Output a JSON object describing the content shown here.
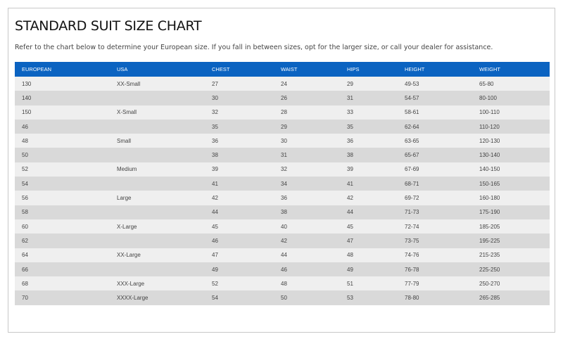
{
  "header": {
    "title": "STANDARD SUIT SIZE CHART",
    "intro": "Refer to the chart below to determine your European size. If you fall in between sizes, opt for the larger size, or call your dealer for assistance."
  },
  "table": {
    "columns": [
      "EUROPEAN",
      "USA",
      "CHEST",
      "WAIST",
      "HIPS",
      "HEIGHT",
      "WEIGHT"
    ],
    "rows": [
      [
        130,
        "XX-Small",
        27,
        24,
        29,
        "49-53",
        "65-80"
      ],
      [
        140,
        null,
        30,
        26,
        31,
        "54-57",
        "80-100"
      ],
      [
        150,
        "X-Small",
        32,
        28,
        33,
        "58-61",
        "100-110"
      ],
      [
        46,
        null,
        35,
        29,
        35,
        "62-64",
        "110-120"
      ],
      [
        48,
        "Small",
        36,
        30,
        36,
        "63-65",
        "120-130"
      ],
      [
        50,
        null,
        38,
        31,
        38,
        "65-67",
        "130-140"
      ],
      [
        52,
        "Medium",
        39,
        32,
        39,
        "67-69",
        "140-150"
      ],
      [
        54,
        null,
        41,
        34,
        41,
        "68-71",
        "150-165"
      ],
      [
        56,
        "Large",
        42,
        36,
        42,
        "69-72",
        "160-180"
      ],
      [
        58,
        null,
        44,
        38,
        44,
        "71-73",
        "175-190"
      ],
      [
        60,
        "X-Large",
        45,
        40,
        45,
        "72-74",
        "185-205"
      ],
      [
        62,
        null,
        46,
        42,
        47,
        "73-75",
        "195-225"
      ],
      [
        64,
        "XX-Large",
        47,
        44,
        48,
        "74-76",
        "215-235"
      ],
      [
        66,
        null,
        49,
        46,
        49,
        "76-78",
        "225-250"
      ],
      [
        68,
        "XXX-Large",
        52,
        48,
        51,
        "77-79",
        "250-270"
      ],
      [
        70,
        "XXXX-Large",
        54,
        50,
        53,
        "78-80",
        "265-285"
      ]
    ]
  }
}
